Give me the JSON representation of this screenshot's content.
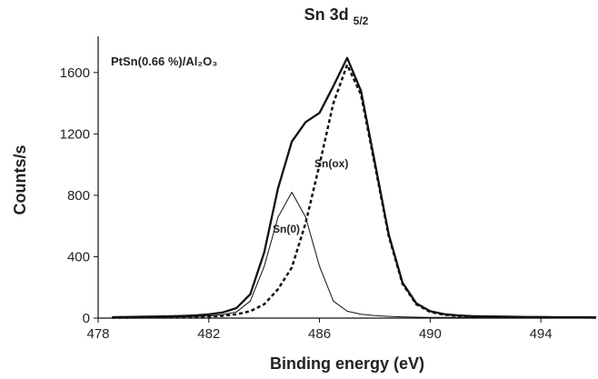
{
  "chart_data": {
    "type": "line",
    "title": "Sn 3d",
    "title_subscript": "5/2",
    "annotation": "PtSn(0.66 %)/Al₂O₃",
    "x_label": "Binding energy (eV)",
    "y_label": "Counts/s",
    "x": [
      478.5,
      479,
      479.5,
      480,
      480.5,
      481,
      481.5,
      482,
      482.5,
      483,
      483.5,
      484,
      484.5,
      485,
      485.5,
      486,
      486.5,
      487,
      487.5,
      488,
      488.5,
      489,
      489.5,
      490,
      490.5,
      491,
      491.5,
      492,
      492.5,
      493,
      493.5,
      494,
      494.5,
      495,
      495.5,
      496
    ],
    "series": [
      {
        "color": "#111111",
        "line_style": "solid",
        "width": 2.3,
        "values": [
          6,
          7,
          9,
          10,
          12,
          14,
          18,
          24,
          37,
          65,
          156,
          427,
          845,
          1150,
          1277,
          1337,
          1511,
          1695,
          1481,
          1016,
          546,
          231,
          96,
          45,
          26,
          18,
          13,
          11,
          10,
          9,
          7,
          7,
          6,
          6,
          6,
          5
        ]
      },
      {
        "name": "Sn(0)",
        "color": "#111111",
        "line_style": "solid",
        "width": 1,
        "values": [
          3,
          4,
          5,
          6,
          7,
          8,
          10,
          14,
          22,
          40,
          111,
          337,
          657,
          820,
          657,
          337,
          111,
          45,
          25,
          16,
          11,
          8,
          6,
          5,
          4,
          4,
          3,
          3,
          3,
          3,
          2,
          2,
          2,
          2,
          2,
          2
        ]
      },
      {
        "name": "Sn(ox)",
        "color": "#111111",
        "line_style": "dashed",
        "width": 2.5,
        "values": [
          3,
          3,
          4,
          4,
          5,
          6,
          8,
          10,
          15,
          25,
          45,
          90,
          188,
          330,
          620,
          1000,
          1400,
          1650,
          1456,
          1000,
          535,
          223,
          90,
          40,
          22,
          14,
          10,
          8,
          7,
          6,
          5,
          5,
          4,
          4,
          4,
          3
        ]
      }
    ],
    "xlim": [
      478,
      496
    ],
    "xticks": [
      478,
      482,
      486,
      490,
      494
    ],
    "ylim": [
      0,
      1800
    ],
    "yticks": [
      0,
      400,
      800,
      1200,
      1600
    ]
  }
}
